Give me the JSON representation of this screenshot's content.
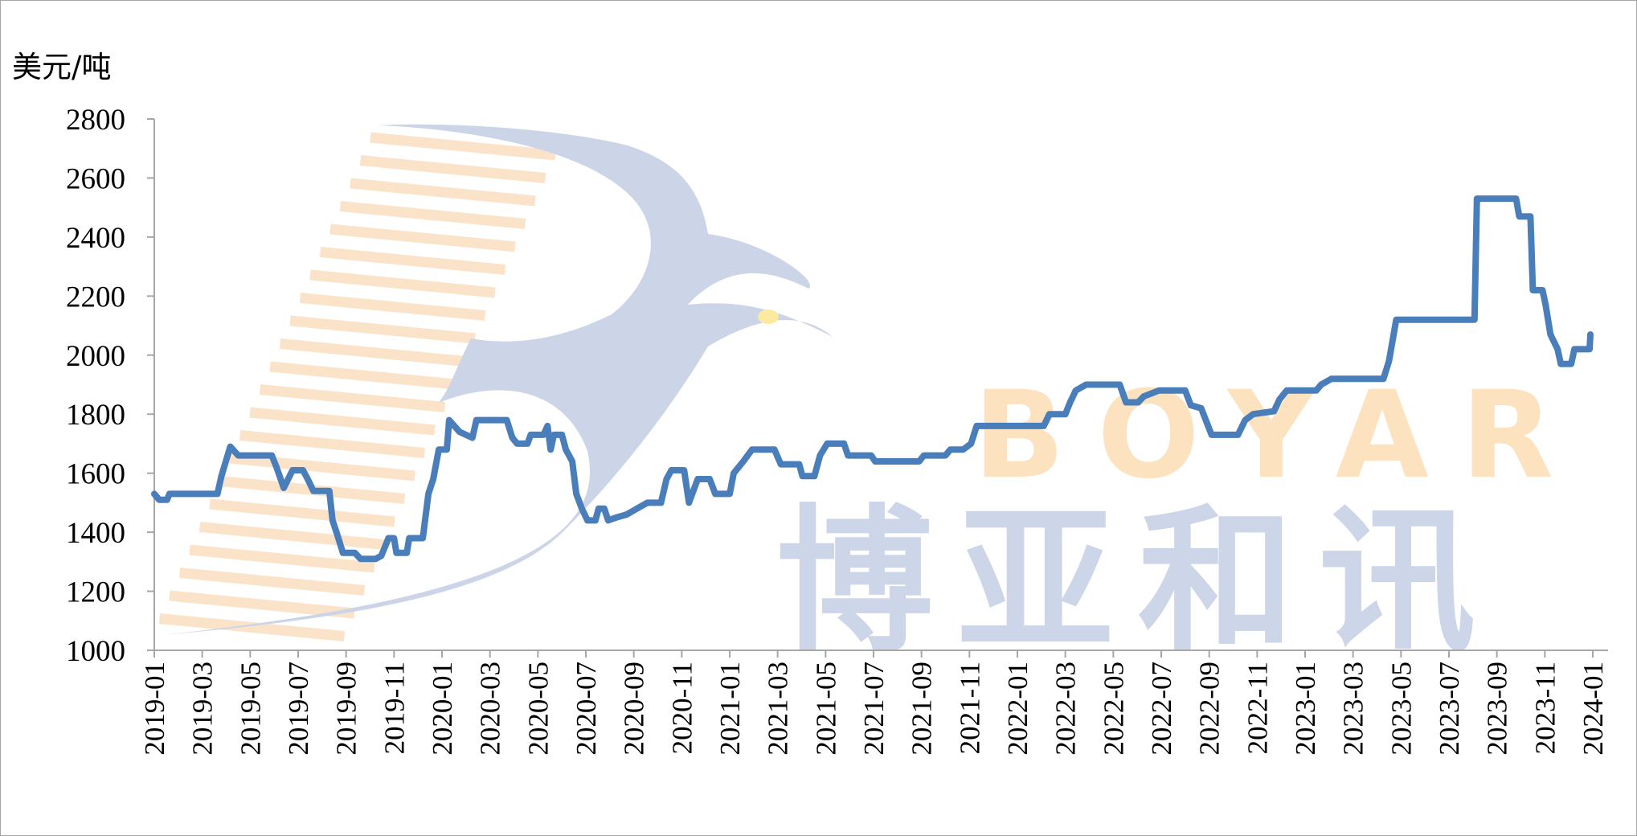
{
  "watermark": {
    "brand_en": "BOYAR",
    "brand_cn": "博亚和讯",
    "bird_color": "#ccd4e8",
    "stripe_color": "#fbe3c9",
    "text_en_color": "#fde2c0",
    "text_cn_color": "#cdd5e8"
  },
  "chart_data": {
    "type": "line",
    "title": "",
    "xlabel": "",
    "ylabel": "美元/吨",
    "ylim": [
      1000,
      2800
    ],
    "yticks": [
      1000,
      1200,
      1400,
      1600,
      1800,
      2000,
      2200,
      2400,
      2600,
      2800
    ],
    "xlim": [
      "2019-01",
      "2024-01"
    ],
    "xticks": [
      "2019-01",
      "2019-03",
      "2019-05",
      "2019-07",
      "2019-09",
      "2019-11",
      "2020-01",
      "2020-03",
      "2020-05",
      "2020-07",
      "2020-09",
      "2020-11",
      "2021-01",
      "2021-03",
      "2021-05",
      "2021-07",
      "2021-09",
      "2021-11",
      "2022-01",
      "2022-03",
      "2022-05",
      "2022-07",
      "2022-09",
      "2022-11",
      "2023-01",
      "2023-03",
      "2023-05",
      "2023-07",
      "2023-09",
      "2023-11",
      "2024-01"
    ],
    "grid": false,
    "legend": "none",
    "series": [
      {
        "color": "#4a7ebb",
        "points": [
          [
            "2019-01-01",
            1530
          ],
          [
            "2019-01-07",
            1510
          ],
          [
            "2019-01-17",
            1510
          ],
          [
            "2019-01-20",
            1530
          ],
          [
            "2019-03-20",
            1530
          ],
          [
            "2019-03-25",
            1590
          ],
          [
            "2019-04-06",
            1690
          ],
          [
            "2019-04-16",
            1660
          ],
          [
            "2019-05-28",
            1660
          ],
          [
            "2019-06-04",
            1620
          ],
          [
            "2019-06-13",
            1550
          ],
          [
            "2019-06-24",
            1610
          ],
          [
            "2019-07-07",
            1610
          ],
          [
            "2019-07-13",
            1580
          ],
          [
            "2019-07-20",
            1540
          ],
          [
            "2019-08-10",
            1540
          ],
          [
            "2019-08-14",
            1440
          ],
          [
            "2019-08-19",
            1400
          ],
          [
            "2019-08-27",
            1330
          ],
          [
            "2019-09-12",
            1330
          ],
          [
            "2019-09-19",
            1310
          ],
          [
            "2019-10-08",
            1310
          ],
          [
            "2019-10-15",
            1320
          ],
          [
            "2019-10-24",
            1380
          ],
          [
            "2019-11-01",
            1380
          ],
          [
            "2019-11-04",
            1330
          ],
          [
            "2019-11-17",
            1330
          ],
          [
            "2019-11-20",
            1380
          ],
          [
            "2019-12-07",
            1380
          ],
          [
            "2019-12-14",
            1530
          ],
          [
            "2019-12-20",
            1580
          ],
          [
            "2019-12-27",
            1680
          ],
          [
            "2020-01-07",
            1680
          ],
          [
            "2020-01-10",
            1780
          ],
          [
            "2020-01-23",
            1740
          ],
          [
            "2020-02-09",
            1720
          ],
          [
            "2020-02-14",
            1780
          ],
          [
            "2020-03-22",
            1780
          ],
          [
            "2020-03-29",
            1720
          ],
          [
            "2020-04-05",
            1700
          ],
          [
            "2020-04-18",
            1700
          ],
          [
            "2020-04-22",
            1730
          ],
          [
            "2020-05-08",
            1730
          ],
          [
            "2020-05-13",
            1760
          ],
          [
            "2020-05-17",
            1680
          ],
          [
            "2020-05-21",
            1730
          ],
          [
            "2020-06-01",
            1730
          ],
          [
            "2020-06-06",
            1680
          ],
          [
            "2020-06-14",
            1640
          ],
          [
            "2020-06-19",
            1530
          ],
          [
            "2020-06-26",
            1480
          ],
          [
            "2020-07-03",
            1440
          ],
          [
            "2020-07-13",
            1440
          ],
          [
            "2020-07-17",
            1480
          ],
          [
            "2020-07-24",
            1480
          ],
          [
            "2020-07-29",
            1440
          ],
          [
            "2020-08-09",
            1450
          ],
          [
            "2020-08-22",
            1460
          ],
          [
            "2020-09-05",
            1480
          ],
          [
            "2020-09-18",
            1500
          ],
          [
            "2020-10-05",
            1500
          ],
          [
            "2020-10-12",
            1580
          ],
          [
            "2020-10-18",
            1610
          ],
          [
            "2020-11-04",
            1610
          ],
          [
            "2020-11-10",
            1500
          ],
          [
            "2020-11-21",
            1580
          ],
          [
            "2020-12-06",
            1580
          ],
          [
            "2020-12-13",
            1530
          ],
          [
            "2020-12-31",
            1530
          ],
          [
            "2021-01-06",
            1600
          ],
          [
            "2021-01-18",
            1640
          ],
          [
            "2021-01-29",
            1680
          ],
          [
            "2021-02-27",
            1680
          ],
          [
            "2021-03-05",
            1630
          ],
          [
            "2021-03-28",
            1630
          ],
          [
            "2021-04-02",
            1590
          ],
          [
            "2021-04-17",
            1590
          ],
          [
            "2021-04-24",
            1660
          ],
          [
            "2021-05-03",
            1700
          ],
          [
            "2021-05-24",
            1700
          ],
          [
            "2021-05-29",
            1660
          ],
          [
            "2021-06-28",
            1660
          ],
          [
            "2021-07-03",
            1640
          ],
          [
            "2021-08-28",
            1640
          ],
          [
            "2021-09-04",
            1660
          ],
          [
            "2021-10-01",
            1660
          ],
          [
            "2021-10-07",
            1680
          ],
          [
            "2021-10-23",
            1680
          ],
          [
            "2021-11-03",
            1700
          ],
          [
            "2021-11-10",
            1760
          ],
          [
            "2022-02-04",
            1760
          ],
          [
            "2022-02-11",
            1800
          ],
          [
            "2022-03-01",
            1800
          ],
          [
            "2022-03-07",
            1840
          ],
          [
            "2022-03-14",
            1880
          ],
          [
            "2022-03-27",
            1900
          ],
          [
            "2022-05-09",
            1900
          ],
          [
            "2022-05-17",
            1840
          ],
          [
            "2022-06-02",
            1840
          ],
          [
            "2022-06-09",
            1860
          ],
          [
            "2022-06-28",
            1880
          ],
          [
            "2022-08-01",
            1880
          ],
          [
            "2022-08-08",
            1830
          ],
          [
            "2022-08-21",
            1820
          ],
          [
            "2022-09-04",
            1730
          ],
          [
            "2022-10-07",
            1730
          ],
          [
            "2022-10-16",
            1780
          ],
          [
            "2022-10-26",
            1800
          ],
          [
            "2022-11-22",
            1810
          ],
          [
            "2022-11-29",
            1850
          ],
          [
            "2022-12-08",
            1880
          ],
          [
            "2023-01-15",
            1880
          ],
          [
            "2023-01-21",
            1900
          ],
          [
            "2023-02-04",
            1920
          ],
          [
            "2023-04-09",
            1920
          ],
          [
            "2023-04-16",
            1980
          ],
          [
            "2023-04-25",
            2120
          ],
          [
            "2023-08-03",
            2120
          ],
          [
            "2023-08-06",
            2530
          ],
          [
            "2023-09-25",
            2530
          ],
          [
            "2023-09-29",
            2470
          ],
          [
            "2023-10-13",
            2470
          ],
          [
            "2023-10-16",
            2220
          ],
          [
            "2023-10-28",
            2220
          ],
          [
            "2023-11-02",
            2170
          ],
          [
            "2023-11-08",
            2070
          ],
          [
            "2023-11-17",
            2020
          ],
          [
            "2023-11-21",
            1970
          ],
          [
            "2023-12-04",
            1970
          ],
          [
            "2023-12-08",
            2020
          ],
          [
            "2023-12-27",
            2020
          ],
          [
            "2023-12-28",
            2070
          ]
        ]
      }
    ]
  }
}
